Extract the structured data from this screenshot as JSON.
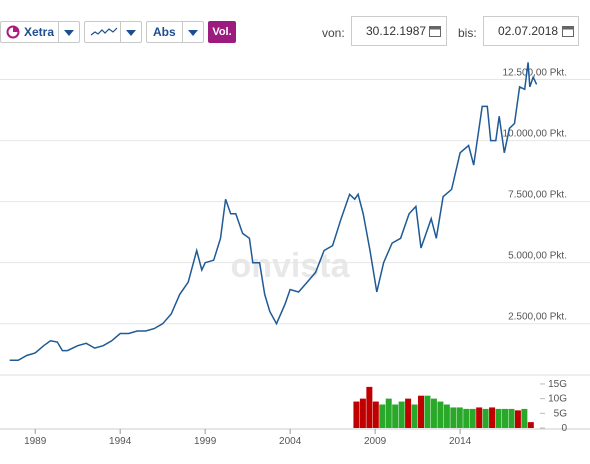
{
  "toolbar": {
    "exchange": "Xetra",
    "mode": "Abs",
    "volume": "Vol.",
    "from_label": "von:",
    "from_date": "30.12.1987",
    "to_label": "bis:",
    "to_date": "02.07.2018"
  },
  "watermark": "onvista",
  "chart_data": {
    "type": "line",
    "color": "#1f5a96",
    "x": [
      1987.5,
      1988.0,
      1988.5,
      1989.0,
      1989.5,
      1989.9,
      1990.3,
      1990.6,
      1990.9,
      1991.5,
      1992.0,
      1992.5,
      1993.0,
      1993.5,
      1994.0,
      1994.5,
      1995.0,
      1995.5,
      1996.0,
      1996.5,
      1997.0,
      1997.5,
      1998.0,
      1998.5,
      1998.8,
      1999.0,
      1999.5,
      1999.9,
      2000.2,
      2000.5,
      2000.8,
      2001.2,
      2001.6,
      2001.8,
      2002.2,
      2002.5,
      2002.8,
      2003.2,
      2003.7,
      2004.0,
      2004.5,
      2005.0,
      2005.5,
      2006.0,
      2006.5,
      2007.0,
      2007.5,
      2007.8,
      2008.0,
      2008.3,
      2008.7,
      2009.1,
      2009.5,
      2010.0,
      2010.5,
      2011.0,
      2011.4,
      2011.7,
      2012.0,
      2012.3,
      2012.6,
      2013.0,
      2013.5,
      2014.0,
      2014.5,
      2014.8,
      2015.3,
      2015.6,
      2015.8,
      2016.1,
      2016.3,
      2016.6,
      2016.9,
      2017.2,
      2017.5,
      2017.8,
      2018.0,
      2018.1,
      2018.3,
      2018.5
    ],
    "values": [
      1000,
      1000,
      1200,
      1300,
      1600,
      1800,
      1750,
      1400,
      1400,
      1600,
      1700,
      1500,
      1600,
      1800,
      2100,
      2100,
      2200,
      2200,
      2300,
      2500,
      2900,
      3700,
      4200,
      5500,
      4700,
      5000,
      5100,
      6000,
      7600,
      7000,
      7000,
      6200,
      6000,
      5000,
      5000,
      3700,
      3000,
      2500,
      3300,
      3900,
      3800,
      4200,
      4600,
      5500,
      5700,
      6800,
      7800,
      7600,
      7800,
      7000,
      5500,
      3800,
      5000,
      5800,
      6000,
      7000,
      7300,
      5600,
      6200,
      6800,
      6000,
      7700,
      8000,
      9500,
      9800,
      9000,
      11400,
      11400,
      10000,
      10000,
      11000,
      9500,
      10500,
      10700,
      12200,
      12100,
      13200,
      12200,
      12600,
      12300
    ],
    "xlim": [
      1987.4,
      2018.7
    ],
    "xticks": [
      1989,
      1994,
      1999,
      2004,
      2009,
      2014
    ],
    "ylim": [
      400,
      13300
    ],
    "yticks": [
      {
        "value": 2500,
        "label": "2.500,00 Pkt."
      },
      {
        "value": 5000,
        "label": "5.000,00 Pkt."
      },
      {
        "value": 7500,
        "label": "7.500,00 Pkt."
      },
      {
        "value": 10000,
        "label": "10.000,00 Pkt."
      },
      {
        "value": 12500,
        "label": "12.500,00 Pkt."
      }
    ],
    "grid": true,
    "volume": {
      "type": "bar",
      "x": [
        2007.9,
        2008.28,
        2008.66,
        2009.04,
        2009.42,
        2009.8,
        2010.18,
        2010.56,
        2010.94,
        2011.32,
        2011.7,
        2012.08,
        2012.46,
        2012.84,
        2013.22,
        2013.6,
        2013.98,
        2014.36,
        2014.74,
        2015.12,
        2015.5,
        2015.88,
        2016.26,
        2016.64,
        2017.02,
        2017.4,
        2017.78,
        2018.16
      ],
      "values": [
        9,
        10,
        14,
        9,
        8,
        10,
        8,
        9,
        10,
        8,
        11,
        11,
        10,
        9,
        8,
        7,
        7,
        6.5,
        6.5,
        7,
        6.5,
        7,
        6.5,
        6.5,
        6.5,
        6,
        6.5,
        2
      ],
      "colors": [
        "#c00000",
        "#c00000",
        "#c00000",
        "#c00000",
        "#2aa82a",
        "#2aa82a",
        "#2aa82a",
        "#2aa82a",
        "#c00000",
        "#2aa82a",
        "#c00000",
        "#2aa82a",
        "#2aa82a",
        "#2aa82a",
        "#2aa82a",
        "#2aa82a",
        "#2aa82a",
        "#2aa82a",
        "#2aa82a",
        "#c00000",
        "#2aa82a",
        "#c00000",
        "#2aa82a",
        "#2aa82a",
        "#2aa82a",
        "#c00000",
        "#2aa82a",
        "#c00000"
      ],
      "ylim": [
        0,
        16
      ],
      "yticks": [
        0,
        {
          "value": 5,
          "label": "5G"
        },
        {
          "value": 10,
          "label": "10G"
        },
        {
          "value": 15,
          "label": "15G"
        }
      ]
    }
  }
}
